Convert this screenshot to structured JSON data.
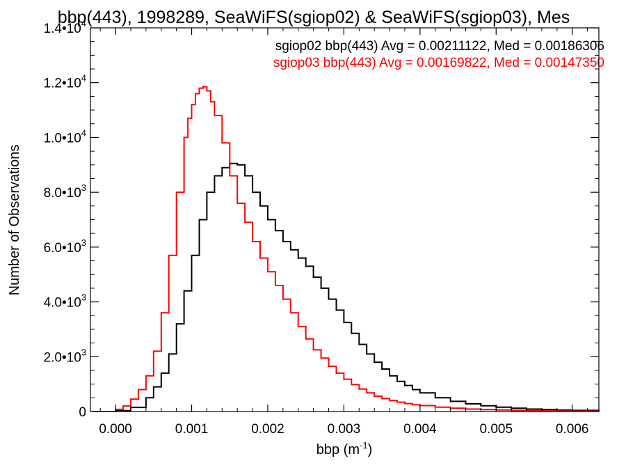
{
  "chart_data": {
    "type": "line",
    "title": "bbp(443), 1998289, SeaWiFS(sgiop02) & SeaWiFS(sgiop03), Mes",
    "xlabel": "bbp (m",
    "xlabel_sup": "-1",
    "xlabel_close": ")",
    "ylabel": "Number of Observations",
    "xlim": [
      -0.00033,
      0.00635
    ],
    "ylim": [
      0,
      14000
    ],
    "x_ticks": [
      {
        "value": 0.0,
        "label": "0.000"
      },
      {
        "value": 0.001,
        "label": "0.001"
      },
      {
        "value": 0.002,
        "label": "0.002"
      },
      {
        "value": 0.003,
        "label": "0.003"
      },
      {
        "value": 0.004,
        "label": "0.004"
      },
      {
        "value": 0.005,
        "label": "0.005"
      },
      {
        "value": 0.006,
        "label": "0.006"
      }
    ],
    "y_ticks": [
      {
        "value": 0,
        "mantissa": "0",
        "exp": ""
      },
      {
        "value": 2000,
        "mantissa": "2.0•10",
        "exp": "3"
      },
      {
        "value": 4000,
        "mantissa": "4.0•10",
        "exp": "3"
      },
      {
        "value": 6000,
        "mantissa": "6.0•10",
        "exp": "3"
      },
      {
        "value": 8000,
        "mantissa": "8.0•10",
        "exp": "3"
      },
      {
        "value": 10000,
        "mantissa": "1.0•10",
        "exp": "4"
      },
      {
        "value": 12000,
        "mantissa": "1.2•10",
        "exp": "4"
      },
      {
        "value": 14000,
        "mantissa": "1.4•10",
        "exp": "4"
      }
    ],
    "grid": false,
    "legend_position": "top-right",
    "series": [
      {
        "name": "sgiop02 bbp(443) Avg = 0.00211122, Med = 0.00186306",
        "color": "#000000",
        "x": [
          -0.0003,
          0.0,
          0.0002,
          0.0004,
          0.0005,
          0.0006,
          0.0007,
          0.0008,
          0.0009,
          0.001,
          0.0011,
          0.0012,
          0.0013,
          0.0014,
          0.0015,
          0.0016,
          0.0017,
          0.0018,
          0.0019,
          0.002,
          0.0021,
          0.0022,
          0.0023,
          0.0024,
          0.0025,
          0.0026,
          0.0027,
          0.0028,
          0.0029,
          0.003,
          0.0031,
          0.0032,
          0.0033,
          0.0034,
          0.0035,
          0.0036,
          0.0037,
          0.0038,
          0.0039,
          0.004,
          0.0042,
          0.0044,
          0.0046,
          0.0048,
          0.005,
          0.0052,
          0.0054,
          0.0056,
          0.0058,
          0.006,
          0.00635
        ],
        "y": [
          0,
          30,
          150,
          500,
          900,
          1400,
          2100,
          3200,
          4400,
          5700,
          7000,
          8000,
          8600,
          8900,
          9050,
          9000,
          8600,
          8000,
          7500,
          7000,
          6600,
          6200,
          5900,
          5600,
          5300,
          4900,
          4500,
          4100,
          3700,
          3250,
          2850,
          2450,
          2100,
          1800,
          1550,
          1300,
          1100,
          950,
          800,
          680,
          500,
          370,
          280,
          210,
          160,
          120,
          90,
          70,
          50,
          40,
          25
        ]
      },
      {
        "name": "sgiop03 bbp(443) Avg = 0.00169822, Med = 0.00147350",
        "color": "#ff0000",
        "x": [
          -0.0003,
          0.0,
          0.0001,
          0.0002,
          0.0003,
          0.0004,
          0.0005,
          0.0006,
          0.0007,
          0.0008,
          0.0009,
          0.00095,
          0.001,
          0.00105,
          0.0011,
          0.00115,
          0.0012,
          0.00125,
          0.0013,
          0.0014,
          0.0015,
          0.0016,
          0.0017,
          0.0018,
          0.0019,
          0.002,
          0.0021,
          0.0022,
          0.0023,
          0.0024,
          0.0025,
          0.0026,
          0.0027,
          0.0028,
          0.0029,
          0.003,
          0.0031,
          0.0032,
          0.0033,
          0.0034,
          0.0035,
          0.0036,
          0.0037,
          0.0038,
          0.0039,
          0.004,
          0.0042,
          0.0044,
          0.0046,
          0.0048,
          0.005,
          0.0052,
          0.0054,
          0.0056,
          0.0058,
          0.006,
          0.00635
        ],
        "y": [
          0,
          80,
          200,
          450,
          800,
          1300,
          2200,
          3600,
          5700,
          8000,
          10000,
          10700,
          11200,
          11600,
          11800,
          11850,
          11700,
          11300,
          10800,
          9800,
          8600,
          7600,
          6900,
          6200,
          5600,
          5100,
          4600,
          4100,
          3600,
          3100,
          2650,
          2250,
          1950,
          1650,
          1400,
          1180,
          980,
          820,
          680,
          560,
          470,
          400,
          340,
          290,
          250,
          215,
          160,
          120,
          90,
          70,
          55,
          40,
          30,
          22,
          16,
          12,
          8
        ]
      }
    ]
  }
}
